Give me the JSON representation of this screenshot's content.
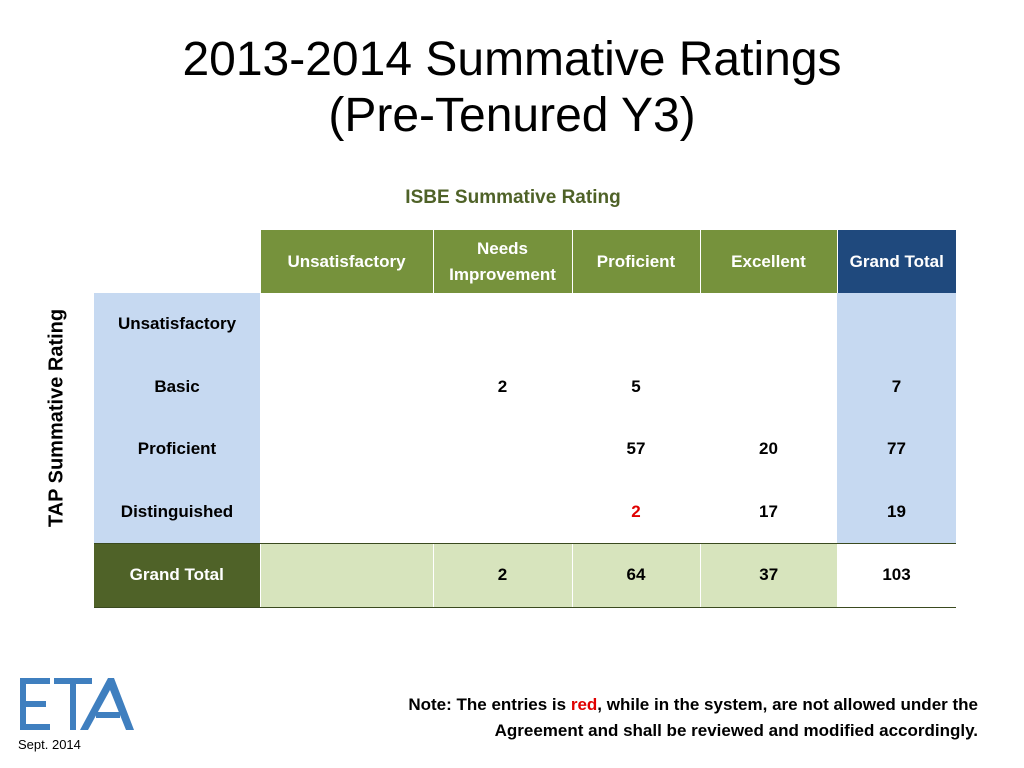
{
  "title": {
    "line1": "2013-2014 Summative Ratings",
    "line2": "(Pre-Tenured Y3)"
  },
  "column_axis_label": "ISBE Summative Rating",
  "row_axis_label": "TAP Summative Rating",
  "table": {
    "columns": [
      "Unsatisfactory",
      "Needs Improvement",
      "Proficient",
      "Excellent",
      "Grand Total"
    ],
    "rows": [
      {
        "label": "Unsatisfactory",
        "cells": [
          "",
          "",
          "",
          "",
          ""
        ]
      },
      {
        "label": "Basic",
        "cells": [
          "",
          "2",
          "5",
          "",
          "7"
        ]
      },
      {
        "label": "Proficient",
        "cells": [
          "",
          "",
          "57",
          "20",
          "77"
        ]
      },
      {
        "label": "Distinguished",
        "cells": [
          "",
          "",
          "2",
          "17",
          "19"
        ]
      }
    ],
    "grand_total": {
      "label": "Grand Total",
      "cells": [
        "",
        "2",
        "64",
        "37",
        "103"
      ]
    },
    "highlight_color": "#e00000"
  },
  "footer": {
    "date": "Sept. 2014",
    "logo_text": "ETA",
    "note_prefix": "Note: The entries is ",
    "note_red": "red",
    "note_suffix_line1": ", while in the system, are not allowed under the",
    "note_line2": "Agreement and shall be reviewed and modified accordingly."
  },
  "colors": {
    "header_green": "#76923c",
    "header_blue": "#1f497d",
    "row_header_blue": "#c6d9f1",
    "grand_total_dark_green": "#4f6228",
    "grand_total_light_green": "#d7e4bd",
    "accent_text_green": "#4f6228"
  }
}
